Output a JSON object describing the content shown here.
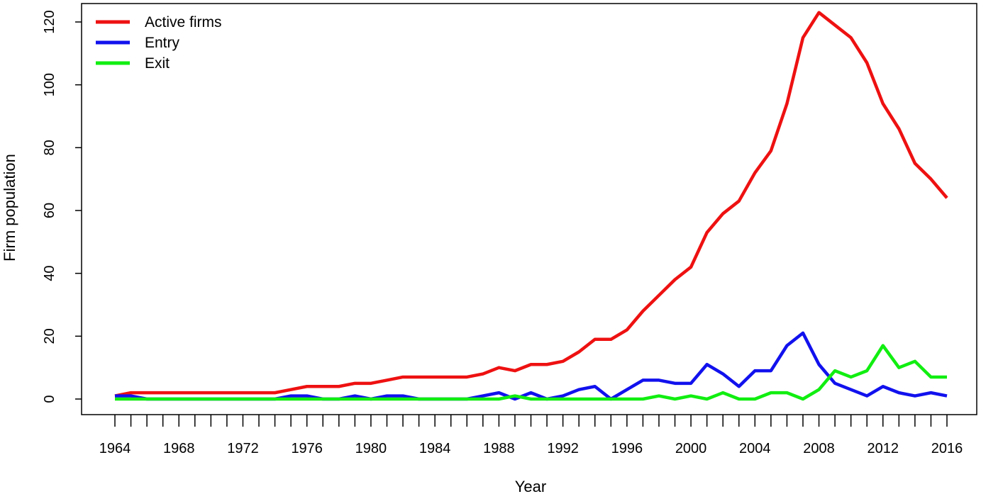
{
  "chart_data": {
    "type": "line",
    "title": "",
    "xlabel": "Year",
    "ylabel": "Firm population",
    "xlim": [
      1964,
      2016
    ],
    "ylim": [
      0,
      120
    ],
    "grid": false,
    "legend_position": "top-left",
    "x_tick_labels": [
      "1964",
      "1968",
      "1972",
      "1976",
      "1980",
      "1984",
      "1988",
      "1992",
      "1996",
      "2000",
      "2004",
      "2008",
      "2012",
      "2016"
    ],
    "y_tick_labels": [
      "0",
      "20",
      "40",
      "60",
      "80",
      "100",
      "120"
    ],
    "x": [
      1964,
      1965,
      1966,
      1967,
      1968,
      1969,
      1970,
      1971,
      1972,
      1973,
      1974,
      1975,
      1976,
      1977,
      1978,
      1979,
      1980,
      1981,
      1982,
      1983,
      1984,
      1985,
      1986,
      1987,
      1988,
      1989,
      1990,
      1991,
      1992,
      1993,
      1994,
      1995,
      1996,
      1997,
      1998,
      1999,
      2000,
      2001,
      2002,
      2003,
      2004,
      2005,
      2006,
      2007,
      2008,
      2009,
      2010,
      2011,
      2012,
      2013,
      2014,
      2015,
      2016
    ],
    "series": [
      {
        "name": "Active firms",
        "color": "#ee1111",
        "values": [
          1,
          2,
          2,
          2,
          2,
          2,
          2,
          2,
          2,
          2,
          2,
          3,
          4,
          4,
          4,
          5,
          5,
          6,
          7,
          7,
          7,
          7,
          7,
          8,
          10,
          9,
          11,
          11,
          12,
          15,
          19,
          19,
          22,
          28,
          33,
          38,
          42,
          53,
          59,
          63,
          72,
          79,
          94,
          115,
          123,
          119,
          115,
          107,
          94,
          86,
          75,
          70,
          64
        ]
      },
      {
        "name": "Entry",
        "color": "#1111ee",
        "values": [
          1,
          1,
          0,
          0,
          0,
          0,
          0,
          0,
          0,
          0,
          0,
          1,
          1,
          0,
          0,
          1,
          0,
          1,
          1,
          0,
          0,
          0,
          0,
          1,
          2,
          0,
          2,
          0,
          1,
          3,
          4,
          0,
          3,
          6,
          6,
          5,
          5,
          11,
          8,
          4,
          9,
          9,
          17,
          21,
          11,
          5,
          3,
          1,
          4,
          2,
          1,
          2,
          1
        ]
      },
      {
        "name": "Exit",
        "color": "#11ee11",
        "values": [
          0,
          0,
          0,
          0,
          0,
          0,
          0,
          0,
          0,
          0,
          0,
          0,
          0,
          0,
          0,
          0,
          0,
          0,
          0,
          0,
          0,
          0,
          0,
          0,
          0,
          1,
          0,
          0,
          0,
          0,
          0,
          0,
          0,
          0,
          1,
          0,
          1,
          0,
          2,
          0,
          0,
          2,
          2,
          0,
          3,
          9,
          7,
          9,
          17,
          10,
          12,
          7,
          7
        ]
      }
    ]
  }
}
